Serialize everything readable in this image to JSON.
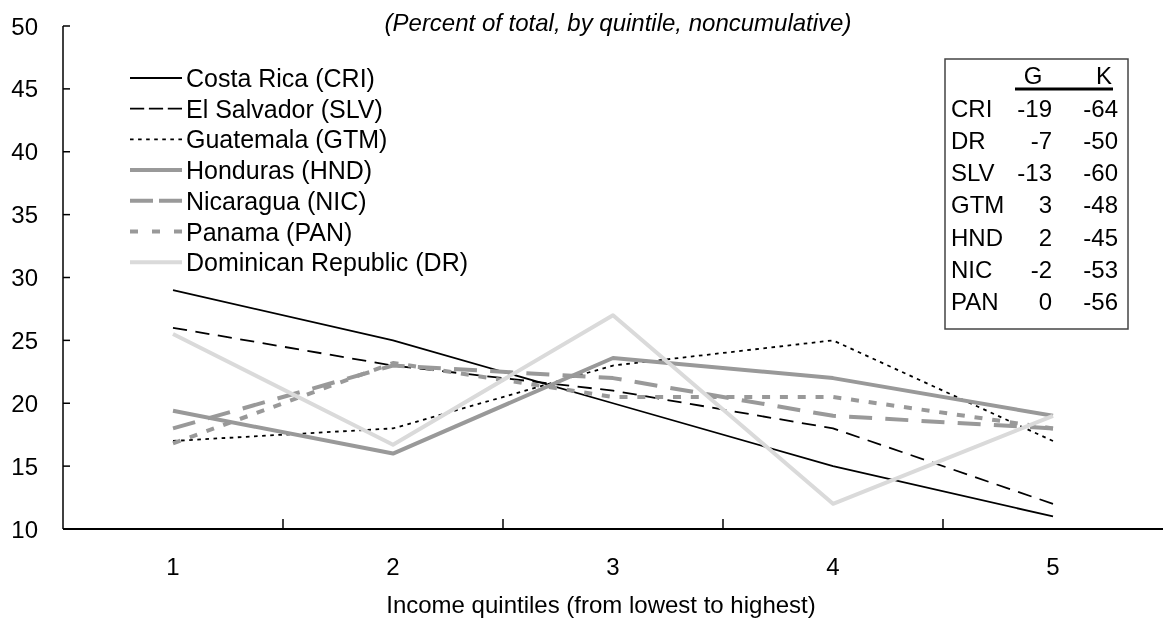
{
  "chart_data": [
    {
      "type": "line",
      "subtitle": "(Percent of total, by quintile, noncumulative)",
      "xlabel": "Income quintiles (from lowest to highest)",
      "categories": [
        "1",
        "2",
        "3",
        "4",
        "5"
      ],
      "series": [
        {
          "name": "Costa Rica (CRI)",
          "color": "#000000",
          "line_style": "solid",
          "values": [
            29,
            25,
            20,
            15,
            11
          ]
        },
        {
          "name": "El Salvador (SLV)",
          "color": "#000000",
          "line_style": "dashed",
          "values": [
            26,
            23,
            21,
            18,
            12
          ]
        },
        {
          "name": "Guatemala (GTM)",
          "color": "#000000",
          "line_style": "dotted",
          "values": [
            17,
            18,
            23,
            25,
            17
          ]
        },
        {
          "name": "Honduras (HND)",
          "color": "#999999",
          "line_style": "solid",
          "values": [
            19.4,
            16,
            23.6,
            22,
            19
          ]
        },
        {
          "name": "Nicaragua (NIC)",
          "color": "#999999",
          "line_style": "dashed",
          "values": [
            18,
            23,
            22,
            19,
            18
          ]
        },
        {
          "name": "Panama (PAN)",
          "color": "#999999",
          "line_style": "dotted",
          "values": [
            16.8,
            23.2,
            20.5,
            20.5,
            18
          ]
        },
        {
          "name": "Dominican Republic (DR)",
          "color": "#dadada",
          "line_style": "solid",
          "values": [
            25.5,
            16.7,
            27,
            12,
            19
          ]
        }
      ],
      "ylim": [
        10,
        50
      ],
      "yticks": [
        10,
        15,
        20,
        25,
        30,
        35,
        40,
        45,
        50
      ],
      "legend": "top left"
    },
    {
      "type": "other",
      "categories": [
        "CRI",
        "DR",
        "SLV",
        "GTM",
        "HND",
        "NIC",
        "PAN"
      ],
      "series": [
        {
          "name": "G",
          "values": [
            -19,
            -7,
            -13,
            3,
            2,
            -2,
            0
          ]
        },
        {
          "name": "K",
          "values": [
            -64,
            -50,
            -60,
            -48,
            -45,
            -53,
            -56
          ]
        }
      ],
      "data_labels": true
    }
  ]
}
